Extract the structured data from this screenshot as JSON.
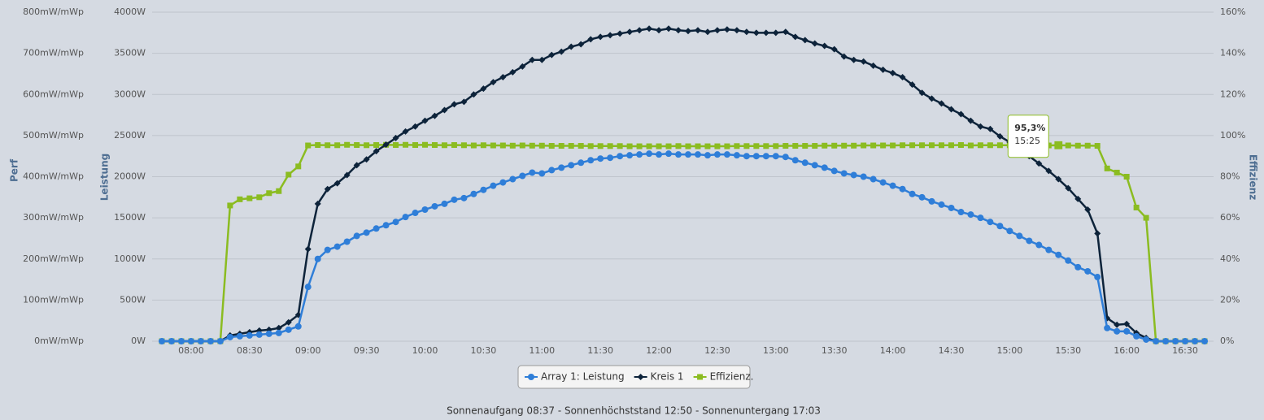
{
  "chart_data": {
    "type": "line",
    "x": [
      "07:45",
      "07:50",
      "07:55",
      "08:00",
      "08:05",
      "08:10",
      "08:15",
      "08:20",
      "08:25",
      "08:30",
      "08:35",
      "08:40",
      "08:45",
      "08:50",
      "08:55",
      "09:00",
      "09:05",
      "09:10",
      "09:15",
      "09:20",
      "09:25",
      "09:30",
      "09:35",
      "09:40",
      "09:45",
      "09:50",
      "09:55",
      "10:00",
      "10:05",
      "10:10",
      "10:15",
      "10:20",
      "10:25",
      "10:30",
      "10:35",
      "10:40",
      "10:45",
      "10:50",
      "10:55",
      "11:00",
      "11:05",
      "11:10",
      "11:15",
      "11:20",
      "11:25",
      "11:30",
      "11:35",
      "11:40",
      "11:45",
      "11:50",
      "11:55",
      "12:00",
      "12:05",
      "12:10",
      "12:15",
      "12:20",
      "12:25",
      "12:30",
      "12:35",
      "12:40",
      "12:45",
      "12:50",
      "12:55",
      "13:00",
      "13:05",
      "13:10",
      "13:15",
      "13:20",
      "13:25",
      "13:30",
      "13:35",
      "13:40",
      "13:45",
      "13:50",
      "13:55",
      "14:00",
      "14:05",
      "14:10",
      "14:15",
      "14:20",
      "14:25",
      "14:30",
      "14:35",
      "14:40",
      "14:45",
      "14:50",
      "14:55",
      "15:00",
      "15:05",
      "15:10",
      "15:15",
      "15:20",
      "15:25",
      "15:30",
      "15:35",
      "15:40",
      "15:45",
      "15:50",
      "15:55",
      "16:00",
      "16:05",
      "16:10",
      "16:15",
      "16:20",
      "16:25",
      "16:30",
      "16:35",
      "16:40"
    ],
    "xticks": [
      "08:00",
      "08:30",
      "09:00",
      "09:30",
      "10:00",
      "10:30",
      "11:00",
      "11:30",
      "12:00",
      "12:30",
      "13:00",
      "13:30",
      "14:00",
      "14:30",
      "15:00",
      "15:30",
      "16:00",
      "16:30"
    ],
    "series": [
      {
        "name": "Array 1: Leistung",
        "color": "#2f7ed8",
        "marker": "circle",
        "values": [
          0,
          0,
          0,
          0,
          0,
          0,
          0,
          50,
          60,
          70,
          80,
          90,
          100,
          140,
          180,
          660,
          1000,
          1110,
          1150,
          1210,
          1280,
          1320,
          1370,
          1410,
          1450,
          1510,
          1560,
          1600,
          1640,
          1670,
          1720,
          1740,
          1790,
          1840,
          1890,
          1930,
          1970,
          2010,
          2050,
          2040,
          2080,
          2110,
          2140,
          2170,
          2200,
          2220,
          2230,
          2250,
          2260,
          2270,
          2280,
          2270,
          2280,
          2270,
          2270,
          2270,
          2260,
          2270,
          2270,
          2260,
          2250,
          2250,
          2250,
          2250,
          2240,
          2200,
          2170,
          2140,
          2110,
          2070,
          2040,
          2020,
          2000,
          1970,
          1930,
          1890,
          1850,
          1790,
          1750,
          1700,
          1660,
          1620,
          1570,
          1540,
          1500,
          1450,
          1400,
          1340,
          1280,
          1220,
          1170,
          1110,
          1050,
          980,
          900,
          850,
          780,
          160,
          120,
          120,
          60,
          20,
          0,
          0,
          0,
          0,
          0,
          0
        ]
      },
      {
        "name": "Kreis 1",
        "color": "#0d233a",
        "marker": "diamond",
        "values": [
          0,
          0,
          0,
          0,
          0,
          0,
          0,
          70,
          90,
          110,
          130,
          140,
          160,
          230,
          320,
          1120,
          1670,
          1850,
          1920,
          2020,
          2140,
          2210,
          2310,
          2390,
          2470,
          2550,
          2610,
          2680,
          2740,
          2810,
          2880,
          2910,
          3000,
          3070,
          3150,
          3210,
          3270,
          3340,
          3420,
          3420,
          3480,
          3520,
          3580,
          3610,
          3670,
          3700,
          3720,
          3740,
          3760,
          3780,
          3800,
          3780,
          3800,
          3780,
          3770,
          3780,
          3760,
          3780,
          3790,
          3780,
          3760,
          3750,
          3750,
          3750,
          3760,
          3700,
          3660,
          3620,
          3590,
          3550,
          3460,
          3420,
          3400,
          3350,
          3300,
          3260,
          3210,
          3120,
          3020,
          2950,
          2890,
          2820,
          2760,
          2680,
          2610,
          2580,
          2490,
          2420,
          2340,
          2250,
          2160,
          2070,
          1970,
          1860,
          1730,
          1600,
          1310,
          280,
          200,
          210,
          100,
          40,
          0,
          0,
          0,
          0,
          0,
          0
        ]
      },
      {
        "name": "Effizienz.",
        "color": "#8bbc21",
        "marker": "square",
        "axis": "y2",
        "values": [
          0,
          0,
          0,
          0,
          0,
          0,
          0,
          66,
          69,
          69.5,
          70,
          72,
          73,
          81,
          85,
          95.2,
          95.4,
          95.3,
          95.3,
          95.5,
          95.4,
          95.3,
          95.4,
          95.5,
          95.4,
          95.5,
          95.4,
          95.5,
          95.4,
          95.3,
          95.4,
          95.3,
          95.2,
          95.3,
          95.2,
          95.2,
          95.1,
          95.2,
          95.1,
          95.1,
          95.0,
          95.0,
          95.0,
          95.0,
          94.9,
          94.9,
          94.9,
          94.9,
          94.8,
          94.8,
          94.8,
          94.8,
          94.8,
          94.9,
          94.8,
          94.8,
          94.8,
          94.8,
          94.8,
          94.9,
          94.9,
          94.9,
          94.9,
          94.9,
          95.0,
          95.0,
          95.0,
          95.0,
          95.1,
          95.1,
          95.1,
          95.1,
          95.2,
          95.2,
          95.2,
          95.2,
          95.3,
          95.3,
          95.3,
          95.3,
          95.3,
          95.3,
          95.4,
          95.2,
          95.3,
          95.3,
          95.3,
          95.3,
          95.4,
          95.4,
          95.3,
          95.2,
          95.3,
          95.2,
          95.1,
          95.1,
          95.0,
          84,
          82,
          80,
          65,
          60,
          0,
          0,
          0,
          0,
          0,
          0
        ]
      }
    ],
    "ylabel": "Leistung",
    "ylim": [
      0,
      4000
    ],
    "yticks": [
      {
        "value": 0,
        "label": "0W"
      },
      {
        "value": 500,
        "label": "500W"
      },
      {
        "value": 1000,
        "label": "1000W"
      },
      {
        "value": 1500,
        "label": "1500W"
      },
      {
        "value": 2000,
        "label": "2000W"
      },
      {
        "value": 2500,
        "label": "2500W"
      },
      {
        "value": 3000,
        "label": "3000W"
      },
      {
        "value": 3500,
        "label": "3500W"
      },
      {
        "value": 4000,
        "label": "4000W"
      }
    ],
    "y2label": "Effizienz",
    "y2lim": [
      0,
      160
    ],
    "y2ticks": [
      {
        "value": 0,
        "label": "0%"
      },
      {
        "value": 20,
        "label": "20%"
      },
      {
        "value": 40,
        "label": "40%"
      },
      {
        "value": 60,
        "label": "60%"
      },
      {
        "value": 80,
        "label": "80%"
      },
      {
        "value": 100,
        "label": "100%"
      },
      {
        "value": 120,
        "label": "120%"
      },
      {
        "value": 140,
        "label": "140%"
      },
      {
        "value": 160,
        "label": "160%"
      }
    ],
    "y3label": "Perf",
    "y3lim": [
      0,
      800
    ],
    "y3ticks": [
      {
        "value": 0,
        "label": "0mW/mWp"
      },
      {
        "value": 100,
        "label": "100mW/mWp"
      },
      {
        "value": 200,
        "label": "200mW/mWp"
      },
      {
        "value": 300,
        "label": "300mW/mWp"
      },
      {
        "value": 400,
        "label": "400mW/mWp"
      },
      {
        "value": 500,
        "label": "500mW/mWp"
      },
      {
        "value": 600,
        "label": "600mW/mWp"
      },
      {
        "value": 700,
        "label": "700mW/mWp"
      },
      {
        "value": 800,
        "label": "800mW/mWp"
      }
    ],
    "grid": true,
    "tooltip": {
      "label": "95,3%",
      "x": "15:25"
    },
    "footer": "Sonnenaufgang 08:37 - Sonnenhöchststand 12:50 - Sonnenuntergang 17:03"
  }
}
